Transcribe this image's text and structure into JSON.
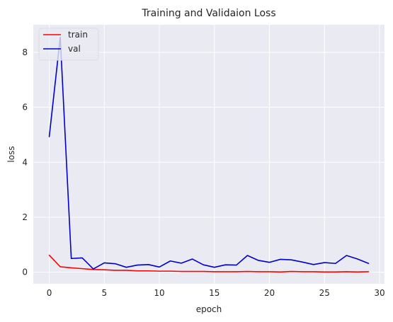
{
  "chart_data": {
    "type": "line",
    "title": "Training and Validaion Loss",
    "xlabel": "epoch",
    "ylabel": "loss",
    "xlim": [
      -1.45,
      30.45
    ],
    "ylim": [
      -0.42,
      9.0
    ],
    "xticks": [
      0,
      5,
      10,
      15,
      20,
      25,
      30
    ],
    "yticks": [
      0,
      2,
      4,
      6,
      8
    ],
    "grid": true,
    "legend_position": "top-left",
    "x": [
      0,
      1,
      2,
      3,
      4,
      5,
      6,
      7,
      8,
      9,
      10,
      11,
      12,
      13,
      14,
      15,
      16,
      17,
      18,
      19,
      20,
      21,
      22,
      23,
      24,
      25,
      26,
      27,
      28,
      29
    ],
    "series": [
      {
        "name": "train",
        "color": "#ff0000",
        "values": [
          0.62,
          0.2,
          0.16,
          0.13,
          0.1,
          0.09,
          0.07,
          0.07,
          0.05,
          0.05,
          0.04,
          0.04,
          0.03,
          0.03,
          0.03,
          0.02,
          0.02,
          0.02,
          0.03,
          0.02,
          0.02,
          0.01,
          0.03,
          0.02,
          0.02,
          0.01,
          0.01,
          0.02,
          0.01,
          0.02
        ]
      },
      {
        "name": "val",
        "color": "#0000cc",
        "values": [
          4.93,
          8.55,
          0.5,
          0.52,
          0.12,
          0.34,
          0.31,
          0.18,
          0.26,
          0.28,
          0.19,
          0.41,
          0.33,
          0.48,
          0.27,
          0.18,
          0.27,
          0.26,
          0.61,
          0.43,
          0.36,
          0.47,
          0.45,
          0.37,
          0.28,
          0.35,
          0.32,
          0.61,
          0.48,
          0.32
        ]
      }
    ]
  }
}
